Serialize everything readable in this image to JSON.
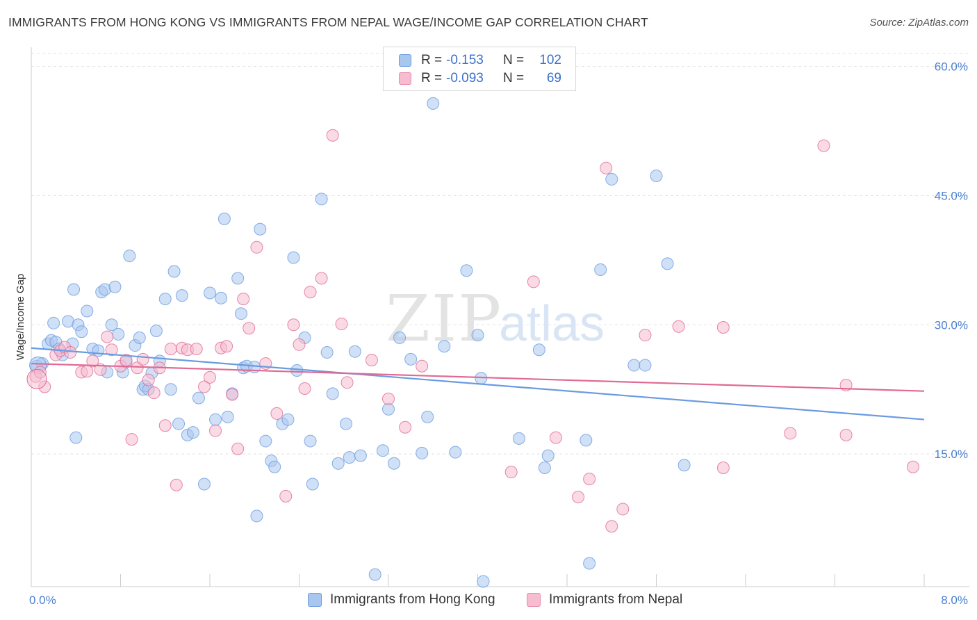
{
  "title": "IMMIGRANTS FROM HONG KONG VS IMMIGRANTS FROM NEPAL WAGE/INCOME GAP CORRELATION CHART",
  "source": "Source: ZipAtlas.com",
  "watermark": {
    "zip": "ZIP",
    "atlas": "atlas"
  },
  "legend": {
    "rows": [
      {
        "r_label": "R =",
        "r_value": "-0.153",
        "n_label": "N =",
        "n_value": "102",
        "fill": "#a9c6ee",
        "stroke": "#6a9be0"
      },
      {
        "r_label": "R =",
        "r_value": "-0.093",
        "n_label": "N =",
        "n_value": "69",
        "fill": "#f6bcd0",
        "stroke": "#e88aaa"
      }
    ]
  },
  "chart_data": {
    "type": "scatter",
    "title": "IMMIGRANTS FROM HONG KONG VS IMMIGRANTS FROM NEPAL WAGE/INCOME GAP CORRELATION CHART",
    "xlabel": "",
    "ylabel": "Wage/Income Gap",
    "xlim": [
      0,
      8
    ],
    "ylim": [
      0,
      60
    ],
    "x_tick_labels": [
      "0.0%",
      "8.0%"
    ],
    "y_ticks": [
      15,
      30,
      45,
      60
    ],
    "y_tick_labels": [
      "15.0%",
      "30.0%",
      "45.0%",
      "60.0%"
    ],
    "grid": true,
    "legend_position": "top-center",
    "series": [
      {
        "name": "Immigrants from Hong Kong",
        "color": "#6a9be0",
        "fill": "#a9c6ee",
        "trend": [
          [
            0,
            27.3
          ],
          [
            8,
            19.0
          ]
        ],
        "points": [
          [
            0.05,
            25.2
          ],
          [
            0.1,
            25.5
          ],
          [
            0.15,
            27.8
          ],
          [
            0.18,
            28.2
          ],
          [
            0.2,
            30.2
          ],
          [
            0.22,
            28.0
          ],
          [
            0.25,
            27.2
          ],
          [
            0.28,
            26.5
          ],
          [
            0.33,
            30.4
          ],
          [
            0.37,
            27.8
          ],
          [
            0.38,
            34.1
          ],
          [
            0.42,
            30.0
          ],
          [
            0.45,
            29.2
          ],
          [
            0.5,
            31.6
          ],
          [
            0.55,
            27.2
          ],
          [
            0.6,
            27.0
          ],
          [
            0.63,
            33.8
          ],
          [
            0.66,
            34.1
          ],
          [
            0.68,
            24.5
          ],
          [
            0.72,
            30.0
          ],
          [
            0.75,
            34.4
          ],
          [
            0.78,
            28.9
          ],
          [
            0.82,
            24.5
          ],
          [
            0.85,
            25.7
          ],
          [
            0.93,
            27.6
          ],
          [
            0.97,
            28.5
          ],
          [
            1.0,
            22.5
          ],
          [
            1.02,
            22.9
          ],
          [
            1.05,
            22.5
          ],
          [
            1.12,
            29.3
          ],
          [
            1.2,
            33.0
          ],
          [
            1.25,
            22.5
          ],
          [
            1.28,
            36.2
          ],
          [
            1.32,
            18.5
          ],
          [
            1.35,
            33.4
          ],
          [
            1.4,
            17.2
          ],
          [
            1.45,
            17.5
          ],
          [
            1.5,
            21.5
          ],
          [
            1.55,
            11.5
          ],
          [
            1.6,
            33.7
          ],
          [
            1.65,
            19.0
          ],
          [
            1.7,
            33.1
          ],
          [
            1.73,
            42.3
          ],
          [
            1.76,
            19.3
          ],
          [
            1.8,
            22.0
          ],
          [
            1.85,
            35.4
          ],
          [
            1.88,
            31.3
          ],
          [
            1.9,
            25.0
          ],
          [
            1.93,
            25.2
          ],
          [
            2.02,
            7.8
          ],
          [
            2.05,
            41.1
          ],
          [
            2.1,
            16.5
          ],
          [
            2.15,
            14.2
          ],
          [
            2.18,
            13.5
          ],
          [
            2.25,
            18.5
          ],
          [
            2.3,
            19.0
          ],
          [
            2.35,
            37.8
          ],
          [
            2.45,
            28.5
          ],
          [
            2.5,
            16.5
          ],
          [
            2.52,
            11.5
          ],
          [
            2.6,
            44.6
          ],
          [
            2.65,
            26.8
          ],
          [
            2.7,
            22.0
          ],
          [
            2.75,
            13.9
          ],
          [
            2.82,
            18.5
          ],
          [
            2.85,
            14.6
          ],
          [
            2.9,
            26.9
          ],
          [
            2.95,
            14.8
          ],
          [
            3.08,
            1.0
          ],
          [
            3.15,
            15.4
          ],
          [
            3.2,
            20.2
          ],
          [
            3.25,
            13.9
          ],
          [
            3.3,
            28.5
          ],
          [
            3.4,
            26.0
          ],
          [
            3.5,
            15.1
          ],
          [
            3.55,
            19.3
          ],
          [
            3.6,
            55.7
          ],
          [
            3.8,
            15.2
          ],
          [
            3.9,
            36.3
          ],
          [
            4.0,
            28.8
          ],
          [
            4.03,
            23.8
          ],
          [
            4.05,
            0.2
          ],
          [
            4.37,
            16.8
          ],
          [
            4.55,
            27.1
          ],
          [
            4.6,
            13.4
          ],
          [
            4.63,
            14.8
          ],
          [
            4.97,
            16.6
          ],
          [
            5.0,
            2.3
          ],
          [
            5.1,
            36.4
          ],
          [
            5.2,
            46.9
          ],
          [
            5.4,
            25.3
          ],
          [
            5.5,
            25.3
          ],
          [
            5.6,
            47.3
          ],
          [
            5.7,
            37.1
          ],
          [
            5.85,
            13.7
          ],
          [
            0.4,
            16.9
          ],
          [
            1.15,
            25.8
          ],
          [
            2.0,
            25.1
          ],
          [
            0.88,
            38.0
          ],
          [
            2.38,
            24.7
          ],
          [
            1.08,
            24.4
          ],
          [
            3.7,
            27.5
          ]
        ]
      },
      {
        "name": "Immigrants from Nepal",
        "color": "#e06a94",
        "fill": "#f6bcd0",
        "trend": [
          [
            0,
            25.5
          ],
          [
            8,
            22.3
          ]
        ],
        "points": [
          [
            0.04,
            24.0
          ],
          [
            0.08,
            24.5
          ],
          [
            0.12,
            22.8
          ],
          [
            0.22,
            26.5
          ],
          [
            0.26,
            27.0
          ],
          [
            0.3,
            27.4
          ],
          [
            0.35,
            26.8
          ],
          [
            0.45,
            24.5
          ],
          [
            0.5,
            24.6
          ],
          [
            0.55,
            25.8
          ],
          [
            0.62,
            24.8
          ],
          [
            0.68,
            28.6
          ],
          [
            0.72,
            27.1
          ],
          [
            0.8,
            25.2
          ],
          [
            0.85,
            25.9
          ],
          [
            0.9,
            16.7
          ],
          [
            0.95,
            25.0
          ],
          [
            1.0,
            26.0
          ],
          [
            1.05,
            23.6
          ],
          [
            1.1,
            22.1
          ],
          [
            1.15,
            25.0
          ],
          [
            1.2,
            18.3
          ],
          [
            1.25,
            27.2
          ],
          [
            1.3,
            11.4
          ],
          [
            1.35,
            27.3
          ],
          [
            1.4,
            27.1
          ],
          [
            1.48,
            27.2
          ],
          [
            1.55,
            22.8
          ],
          [
            1.6,
            23.9
          ],
          [
            1.65,
            17.7
          ],
          [
            1.7,
            27.3
          ],
          [
            1.75,
            27.5
          ],
          [
            1.8,
            21.9
          ],
          [
            1.85,
            15.6
          ],
          [
            1.9,
            33.0
          ],
          [
            1.95,
            29.6
          ],
          [
            2.02,
            39.0
          ],
          [
            2.1,
            25.5
          ],
          [
            2.2,
            19.7
          ],
          [
            2.28,
            10.1
          ],
          [
            2.35,
            30.0
          ],
          [
            2.4,
            27.7
          ],
          [
            2.45,
            22.6
          ],
          [
            2.5,
            33.8
          ],
          [
            2.6,
            35.4
          ],
          [
            2.7,
            52.0
          ],
          [
            2.78,
            30.1
          ],
          [
            2.83,
            23.3
          ],
          [
            3.05,
            25.9
          ],
          [
            3.2,
            21.4
          ],
          [
            3.35,
            18.1
          ],
          [
            3.5,
            25.2
          ],
          [
            4.3,
            12.9
          ],
          [
            4.5,
            35.0
          ],
          [
            4.7,
            16.9
          ],
          [
            4.9,
            10.0
          ],
          [
            5.0,
            12.1
          ],
          [
            5.15,
            48.2
          ],
          [
            5.2,
            6.6
          ],
          [
            5.3,
            8.6
          ],
          [
            5.5,
            28.8
          ],
          [
            5.8,
            29.8
          ],
          [
            6.2,
            13.4
          ],
          [
            6.2,
            29.7
          ],
          [
            6.8,
            17.4
          ],
          [
            7.1,
            50.8
          ],
          [
            7.3,
            23.0
          ],
          [
            7.3,
            17.2
          ],
          [
            7.9,
            13.5
          ]
        ]
      }
    ]
  }
}
